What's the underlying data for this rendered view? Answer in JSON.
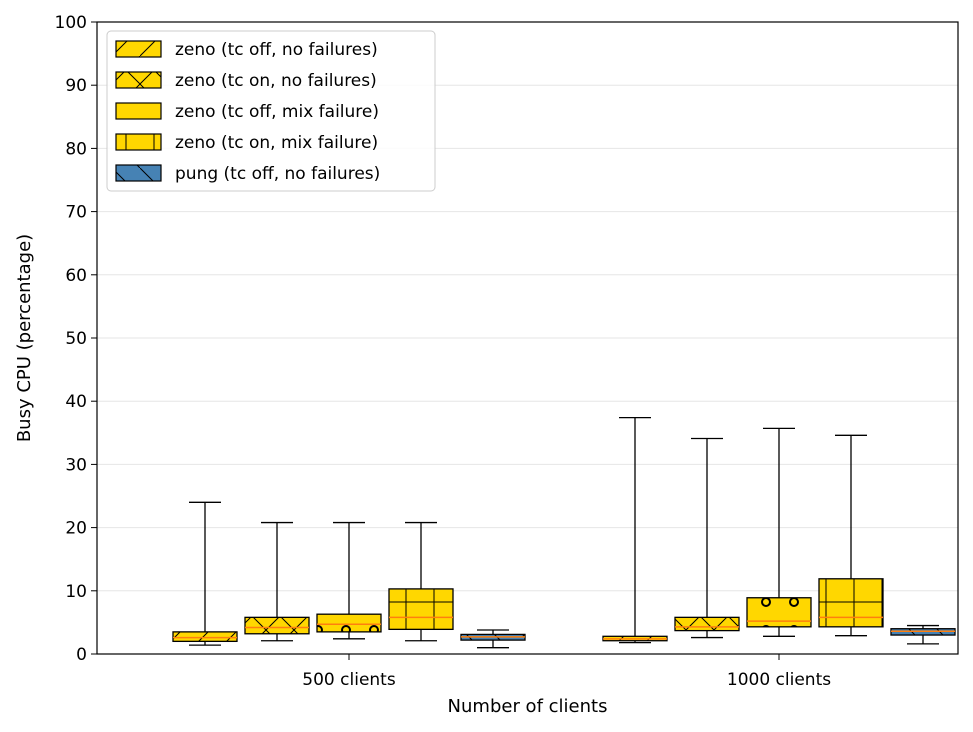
{
  "chart_data": {
    "type": "box",
    "title": "",
    "xlabel": "Number of clients",
    "ylabel": "Busy CPU (percentage)",
    "ylim": [
      0,
      100
    ],
    "yticks": [
      0,
      10,
      20,
      30,
      40,
      50,
      60,
      70,
      80,
      90,
      100
    ],
    "grid": "y",
    "legend_position": "top-left",
    "categories": [
      "500 clients",
      "1000 clients"
    ],
    "series": [
      {
        "name": "zeno (tc off, no failures)",
        "color": "#ffd700",
        "hatch": "diagonal",
        "boxes": [
          {
            "whislo": 1.4,
            "q1": 2.0,
            "median": 2.6,
            "q3": 3.5,
            "whishi": 24.0
          },
          {
            "whislo": 1.8,
            "q1": 2.1,
            "median": 2.4,
            "q3": 2.8,
            "whishi": 37.4
          }
        ]
      },
      {
        "name": "zeno (tc on, no failures)",
        "color": "#ffd700",
        "hatch": "cross",
        "boxes": [
          {
            "whislo": 2.1,
            "q1": 3.2,
            "median": 4.2,
            "q3": 5.8,
            "whishi": 20.8
          },
          {
            "whislo": 2.6,
            "q1": 3.7,
            "median": 4.3,
            "q3": 5.8,
            "whishi": 34.1
          }
        ]
      },
      {
        "name": "zeno (tc off, mix failure)",
        "color": "#ffd700",
        "hatch": "circles",
        "boxes": [
          {
            "whislo": 2.4,
            "q1": 3.5,
            "median": 4.7,
            "q3": 6.3,
            "whishi": 20.8
          },
          {
            "whislo": 2.8,
            "q1": 4.3,
            "median": 5.2,
            "q3": 8.9,
            "whishi": 35.7
          }
        ]
      },
      {
        "name": "zeno (tc on, mix failure)",
        "color": "#ffd700",
        "hatch": "plus",
        "boxes": [
          {
            "whislo": 2.1,
            "q1": 3.9,
            "median": 5.8,
            "q3": 10.3,
            "whishi": 20.8
          },
          {
            "whislo": 2.9,
            "q1": 4.3,
            "median": 5.8,
            "q3": 11.9,
            "whishi": 34.6
          }
        ]
      },
      {
        "name": "pung (tc off, no failures)",
        "color": "#4682b4",
        "hatch": "backslash",
        "boxes": [
          {
            "whislo": 1.0,
            "q1": 2.2,
            "median": 2.7,
            "q3": 3.1,
            "whishi": 3.8
          },
          {
            "whislo": 1.6,
            "q1": 3.0,
            "median": 3.6,
            "q3": 4.0,
            "whishi": 4.5
          }
        ]
      }
    ]
  }
}
